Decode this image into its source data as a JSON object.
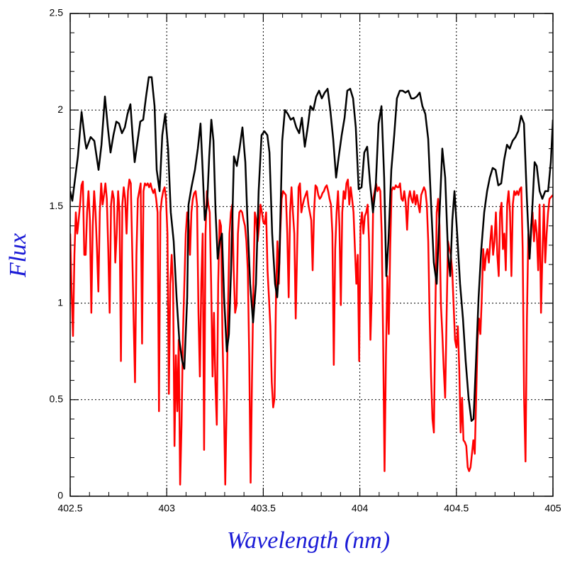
{
  "chart_data": {
    "type": "line",
    "xlabel": "Wavelength (nm)",
    "ylabel": "Flux",
    "xlim": [
      402.5,
      405
    ],
    "ylim": [
      0,
      2.5
    ],
    "xticks": [
      402.5,
      403,
      403.5,
      404,
      404.5,
      405
    ],
    "yticks": [
      0,
      0.5,
      1,
      1.5,
      2,
      2.5
    ],
    "xminorticks": [
      402.6,
      402.7,
      402.8,
      402.9,
      403.1,
      403.2,
      403.3,
      403.4,
      403.6,
      403.7,
      403.8,
      403.9,
      404.1,
      404.2,
      404.3,
      404.4,
      404.6,
      404.7,
      404.8,
      404.9
    ],
    "yminorticks": [
      0.1,
      0.2,
      0.3,
      0.4,
      0.6,
      0.7,
      0.8,
      0.9,
      1.1,
      1.2,
      1.3,
      1.4,
      1.6,
      1.7,
      1.8,
      1.9,
      2.1,
      2.2,
      2.3,
      2.4
    ],
    "grid": true,
    "series": [
      {
        "color": "#000000",
        "x": [
          402.5,
          402.511,
          402.54,
          402.559,
          402.577,
          402.584,
          402.606,
          402.625,
          402.647,
          402.662,
          402.68,
          402.695,
          402.709,
          402.724,
          402.739,
          402.753,
          402.768,
          402.783,
          402.797,
          402.812,
          402.823,
          402.834,
          402.849,
          402.863,
          402.878,
          402.893,
          402.907,
          402.922,
          402.937,
          402.948,
          402.963,
          402.977,
          402.992,
          403.007,
          403.021,
          403.036,
          403.051,
          403.065,
          403.08,
          403.091,
          403.106,
          403.113,
          403.128,
          403.146,
          403.161,
          403.175,
          403.186,
          403.197,
          403.209,
          403.22,
          403.231,
          403.242,
          403.253,
          403.264,
          403.275,
          403.286,
          403.297,
          403.311,
          403.322,
          403.333,
          403.348,
          403.363,
          403.377,
          403.392,
          403.407,
          403.418,
          403.432,
          403.447,
          403.462,
          403.476,
          403.491,
          403.506,
          403.521,
          403.532,
          403.546,
          403.561,
          403.572,
          403.583,
          403.598,
          403.612,
          403.627,
          403.642,
          403.656,
          403.671,
          403.686,
          403.7,
          403.715,
          403.73,
          403.744,
          403.759,
          403.774,
          403.789,
          403.803,
          403.818,
          403.833,
          403.847,
          403.862,
          403.877,
          403.891,
          403.906,
          403.921,
          403.935,
          403.95,
          403.965,
          403.979,
          403.994,
          404.009,
          404.023,
          404.038,
          404.053,
          404.068,
          404.082,
          404.097,
          404.112,
          404.126,
          404.137,
          404.148,
          404.163,
          404.178,
          404.192,
          404.207,
          404.222,
          404.236,
          404.251,
          404.266,
          404.28,
          404.295,
          404.31,
          404.324,
          404.339,
          404.354,
          404.369,
          404.383,
          404.398,
          404.413,
          404.427,
          404.442,
          404.457,
          404.468,
          404.479,
          404.49,
          404.504,
          404.519,
          404.534,
          404.548,
          404.563,
          404.578,
          404.589,
          404.6,
          404.615,
          404.629,
          404.644,
          404.659,
          404.673,
          404.688,
          404.703,
          404.717,
          404.732,
          404.747,
          404.762,
          404.776,
          404.791,
          404.806,
          404.82,
          404.835,
          404.85,
          404.865,
          404.879,
          404.894,
          404.905,
          404.916,
          404.931,
          404.945,
          404.96,
          404.975,
          404.989,
          405
        ],
        "values": [
          1.58,
          1.53,
          1.76,
          1.99,
          1.84,
          1.8,
          1.86,
          1.84,
          1.69,
          1.82,
          2.07,
          1.91,
          1.78,
          1.87,
          1.94,
          1.93,
          1.88,
          1.91,
          1.98,
          2.03,
          1.87,
          1.73,
          1.84,
          1.94,
          1.95,
          2.07,
          2.17,
          2.17,
          2.02,
          1.69,
          1.58,
          1.87,
          1.98,
          1.8,
          1.47,
          1.32,
          1.03,
          0.81,
          0.7,
          0.66,
          1.03,
          1.51,
          1.6,
          1.69,
          1.8,
          1.93,
          1.69,
          1.43,
          1.51,
          1.76,
          1.95,
          1.84,
          1.47,
          1.23,
          1.32,
          1.36,
          1.03,
          0.75,
          0.84,
          1.17,
          1.76,
          1.71,
          1.8,
          1.91,
          1.73,
          1.43,
          1.1,
          0.9,
          1.1,
          1.58,
          1.87,
          1.89,
          1.87,
          1.78,
          1.36,
          1.1,
          1.03,
          1.21,
          1.84,
          2,
          1.98,
          1.95,
          1.96,
          1.91,
          1.88,
          1.96,
          1.81,
          1.91,
          2.02,
          2,
          2.07,
          2.1,
          2.06,
          2.09,
          2.11,
          2,
          1.85,
          1.65,
          1.76,
          1.87,
          1.96,
          2.1,
          2.11,
          2.06,
          1.91,
          1.59,
          1.6,
          1.78,
          1.81,
          1.62,
          1.47,
          1.6,
          1.93,
          2.02,
          1.65,
          1.14,
          1.32,
          1.69,
          1.87,
          2.06,
          2.1,
          2.1,
          2.09,
          2.1,
          2.06,
          2.06,
          2.07,
          2.09,
          2.02,
          1.98,
          1.85,
          1.51,
          1.21,
          1.1,
          1.47,
          1.8,
          1.65,
          1.25,
          1.14,
          1.43,
          1.58,
          1.36,
          1.1,
          0.92,
          0.7,
          0.51,
          0.39,
          0.4,
          0.66,
          1.03,
          1.28,
          1.47,
          1.58,
          1.65,
          1.7,
          1.69,
          1.61,
          1.62,
          1.74,
          1.82,
          1.8,
          1.84,
          1.86,
          1.89,
          1.97,
          1.93,
          1.54,
          1.23,
          1.51,
          1.73,
          1.71,
          1.58,
          1.54,
          1.58,
          1.58,
          1.73,
          1.95
        ]
      },
      {
        "color": "#ff0000",
        "x": [
          402.5,
          402.5073,
          402.5146,
          402.5219,
          402.5292,
          402.5365,
          402.5438,
          402.5511,
          402.5584,
          402.5657,
          402.573,
          402.5803,
          402.5876,
          402.5949,
          402.6022,
          402.6095,
          402.6168,
          402.6241,
          402.6314,
          402.6387,
          402.646,
          402.6533,
          402.6606,
          402.6679,
          402.6752,
          402.6825,
          402.6898,
          402.6971,
          402.7044,
          402.7117,
          402.719,
          402.7263,
          402.7336,
          402.7409,
          402.7482,
          402.7555,
          402.7628,
          402.7701,
          402.7774,
          402.7847,
          402.792,
          402.7993,
          402.8066,
          402.8139,
          402.8212,
          402.8285,
          402.8358,
          402.8431,
          402.8504,
          402.8577,
          402.865,
          402.8723,
          402.8796,
          402.8869,
          402.8942,
          402.9015,
          402.9088,
          402.9161,
          402.9234,
          402.9307,
          402.938,
          402.9453,
          402.9526,
          402.9599,
          402.9672,
          402.9745,
          402.9818,
          402.9891,
          402.9964,
          403.0037,
          403.011,
          403.0183,
          403.0256,
          403.0329,
          403.0402,
          403.0475,
          403.0548,
          403.0621,
          403.0694,
          403.0767,
          403.084,
          403.0913,
          403.0986,
          403.1059,
          403.1132,
          403.1205,
          403.1278,
          403.1351,
          403.1424,
          403.1497,
          403.157,
          403.1643,
          403.1716,
          403.1789,
          403.1862,
          403.1935,
          403.2008,
          403.2081,
          403.2154,
          403.2227,
          403.23,
          403.2373,
          403.2446,
          403.2519,
          403.2592,
          403.2665,
          403.2738,
          403.2811,
          403.2884,
          403.2957,
          403.303,
          403.3103,
          403.3176,
          403.3249,
          403.3322,
          403.3395,
          403.3468,
          403.3541,
          403.3614,
          403.3687,
          403.376,
          403.3833,
          403.3906,
          403.3979,
          403.4052,
          403.4125,
          403.4198,
          403.4271,
          403.4344,
          403.4417,
          403.449,
          403.4563,
          403.4636,
          403.4709,
          403.4782,
          403.4855,
          403.4928,
          403.5001,
          403.5074,
          403.5147,
          403.522,
          403.5293,
          403.5366,
          403.5439,
          403.5512,
          403.5585,
          403.5658,
          403.5731,
          403.5804,
          403.5877,
          403.595,
          403.6023,
          403.6096,
          403.6169,
          403.6242,
          403.6315,
          403.6388,
          403.6461,
          403.6534,
          403.6607,
          403.668,
          403.6753,
          403.6826,
          403.6899,
          403.6972,
          403.7045,
          403.7118,
          403.7191,
          403.7264,
          403.7337,
          403.741,
          403.7483,
          403.7556,
          403.7629,
          403.7702,
          403.7775,
          403.7848,
          403.7921,
          403.7994,
          403.8067,
          403.814,
          403.8213,
          403.8286,
          403.8359,
          403.8432,
          403.8505,
          403.8578,
          403.8651,
          403.8724,
          403.8797,
          403.887,
          403.8943,
          403.9016,
          403.9089,
          403.9162,
          403.9235,
          403.9308,
          403.9381,
          403.9454,
          403.9527,
          403.96,
          403.9673,
          403.9746,
          403.9819,
          403.9892,
          403.9965,
          404.0038,
          404.0111,
          404.0184,
          404.0257,
          404.033,
          404.0403,
          404.0476,
          404.0549,
          404.0622,
          404.0695,
          404.0768,
          404.0841,
          404.0914,
          404.0987,
          404.106,
          404.1133,
          404.1206,
          404.1279,
          404.1352,
          404.1425,
          404.1498,
          404.1571,
          404.1644,
          404.1717,
          404.179,
          404.1863,
          404.1936,
          404.2009,
          404.2082,
          404.2155,
          404.2228,
          404.2301,
          404.2374,
          404.2447,
          404.252,
          404.2593,
          404.2666,
          404.2739,
          404.2812,
          404.2885,
          404.2958,
          404.3031,
          404.3104,
          404.3177,
          404.325,
          404.3323,
          404.3396,
          404.3469,
          404.3542,
          404.3615,
          404.3688,
          404.3761,
          404.3834,
          404.3907,
          404.398,
          404.4053,
          404.4126,
          404.4199,
          404.4272,
          404.4345,
          404.4418,
          404.4491,
          404.4564,
          404.4637,
          404.471,
          404.4783,
          404.4856,
          404.4929,
          404.5002,
          404.5075,
          404.5148,
          404.5221,
          404.5294,
          404.5367,
          404.544,
          404.5513,
          404.5586,
          404.5659,
          404.5732,
          404.5805,
          404.5878,
          404.5951,
          404.6024,
          404.6097,
          404.617,
          404.6243,
          404.6316,
          404.6389,
          404.6462,
          404.6535,
          404.6608,
          404.6681,
          404.6754,
          404.6827,
          404.69,
          404.6973,
          404.7046,
          404.7119,
          404.7192,
          404.7265,
          404.7338,
          404.7411,
          404.7484,
          404.7557,
          404.763,
          404.7703,
          404.7776,
          404.7849,
          404.7922,
          404.7995,
          404.8068,
          404.8141,
          404.8214,
          404.8287,
          404.836,
          404.8433,
          404.8506,
          404.8579,
          404.8652,
          404.8725,
          404.8798,
          404.8871,
          404.8944,
          404.9017,
          404.909,
          404.9163,
          404.9236,
          404.9309,
          404.9382,
          404.9455,
          404.9528,
          404.9601,
          404.9674,
          404.9747,
          404.982,
          405
        ],
        "values": [
          1.36,
          1.06,
          0.83,
          1.25,
          1.47,
          1.36,
          1.43,
          1.51,
          1.61,
          1.63,
          1.25,
          1.25,
          1.47,
          1.58,
          1.43,
          0.95,
          1.4,
          1.58,
          1.47,
          1.28,
          1.06,
          1.47,
          1.62,
          1.51,
          1.56,
          1.62,
          1.54,
          1.28,
          0.95,
          1.51,
          1.58,
          1.54,
          1.21,
          1.36,
          1.58,
          1.47,
          0.7,
          1.51,
          1.6,
          1.54,
          1.36,
          1.58,
          1.64,
          1.62,
          1.28,
          0.92,
          0.59,
          1.25,
          1.54,
          1.58,
          1.62,
          0.79,
          1.58,
          1.62,
          1.61,
          1.62,
          1.6,
          1.62,
          1.59,
          1.57,
          1.59,
          1.54,
          1.47,
          0.44,
          1.47,
          1.54,
          1.58,
          1.6,
          1.54,
          1.36,
          0.53,
          1.1,
          1.25,
          1.1,
          0.26,
          0.73,
          0.44,
          0.81,
          0.06,
          0.37,
          0.84,
          1.1,
          1.36,
          1.47,
          1.43,
          1.25,
          1.47,
          1.54,
          1.57,
          1.58,
          1.51,
          0.95,
          0.62,
          1.1,
          1.36,
          0.24,
          1.36,
          1.58,
          1.51,
          1.47,
          1.1,
          0.62,
          0.95,
          0.59,
          0.37,
          1.1,
          1.43,
          1.4,
          0.84,
          0.51,
          0.06,
          0.48,
          0.99,
          1.36,
          1.47,
          1.51,
          1.17,
          0.95,
          0.99,
          1.36,
          1.47,
          1.48,
          1.47,
          1.43,
          1.4,
          1.32,
          1.17,
          0.73,
          0.07,
          0.62,
          1.1,
          1.47,
          1.43,
          1.32,
          1.4,
          1.51,
          1.47,
          1.42,
          1.41,
          1.47,
          1.17,
          1.03,
          0.88,
          0.59,
          0.46,
          0.51,
          1.03,
          1.32,
          1.1,
          1.36,
          1.54,
          1.58,
          1.57,
          1.56,
          1.36,
          1.03,
          1.47,
          1.6,
          1.47,
          1.36,
          0.92,
          1.28,
          1.6,
          1.62,
          1.47,
          1.51,
          1.54,
          1.56,
          1.58,
          1.51,
          1.47,
          1.43,
          1.17,
          1.47,
          1.61,
          1.6,
          1.56,
          1.54,
          1.55,
          1.57,
          1.58,
          1.6,
          1.61,
          1.58,
          1.54,
          1.51,
          1.36,
          0.68,
          1.28,
          1.47,
          1.58,
          1.4,
          0.99,
          1.47,
          1.58,
          1.54,
          1.62,
          1.64,
          1.51,
          1.6,
          1.54,
          1.47,
          1.28,
          1.1,
          1.25,
          0.7,
          1.4,
          1.47,
          1.36,
          1.45,
          1.47,
          1.51,
          1.32,
          0.81,
          1.06,
          1.54,
          1.58,
          1.62,
          1.58,
          1.6,
          1.58,
          1.36,
          0.81,
          0.13,
          0.73,
          1.14,
          0.84,
          1.28,
          1.58,
          1.6,
          1.59,
          1.61,
          1.6,
          1.6,
          1.62,
          1.54,
          1.53,
          1.58,
          1.52,
          1.38,
          1.54,
          1.58,
          1.54,
          1.52,
          1.58,
          1.51,
          1.56,
          1.51,
          1.47,
          1.56,
          1.58,
          1.6,
          1.58,
          1.51,
          1.32,
          0.92,
          0.62,
          0.4,
          0.33,
          0.92,
          1.47,
          1.54,
          1.4,
          0.99,
          0.84,
          0.66,
          0.51,
          0.92,
          1.32,
          1.28,
          1.25,
          1.17,
          0.99,
          0.81,
          0.77,
          0.88,
          0.66,
          0.33,
          0.51,
          0.29,
          0.28,
          0.26,
          0.15,
          0.13,
          0.15,
          0.22,
          0.29,
          0.22,
          0.51,
          0.81,
          0.92,
          0.84,
          1.03,
          1.28,
          1.17,
          1.25,
          1.28,
          1.21,
          1.32,
          1.4,
          1.25,
          1.32,
          1.47,
          1.25,
          1.14,
          1.47,
          1.52,
          1.28,
          1.36,
          1.17,
          1.51,
          1.58,
          1.47,
          1.14,
          1.51,
          1.58,
          1.56,
          1.58,
          1.56,
          1.59,
          1.6,
          1.28,
          0.51,
          0.18,
          0.92,
          1.36,
          1.25,
          1.4,
          1.47,
          1.32,
          1.43,
          1.36,
          1.17,
          1.51,
          0.95,
          1.25,
          1.51,
          1.21,
          1.36,
          1.47,
          1.54,
          1.56
        ]
      }
    ]
  }
}
